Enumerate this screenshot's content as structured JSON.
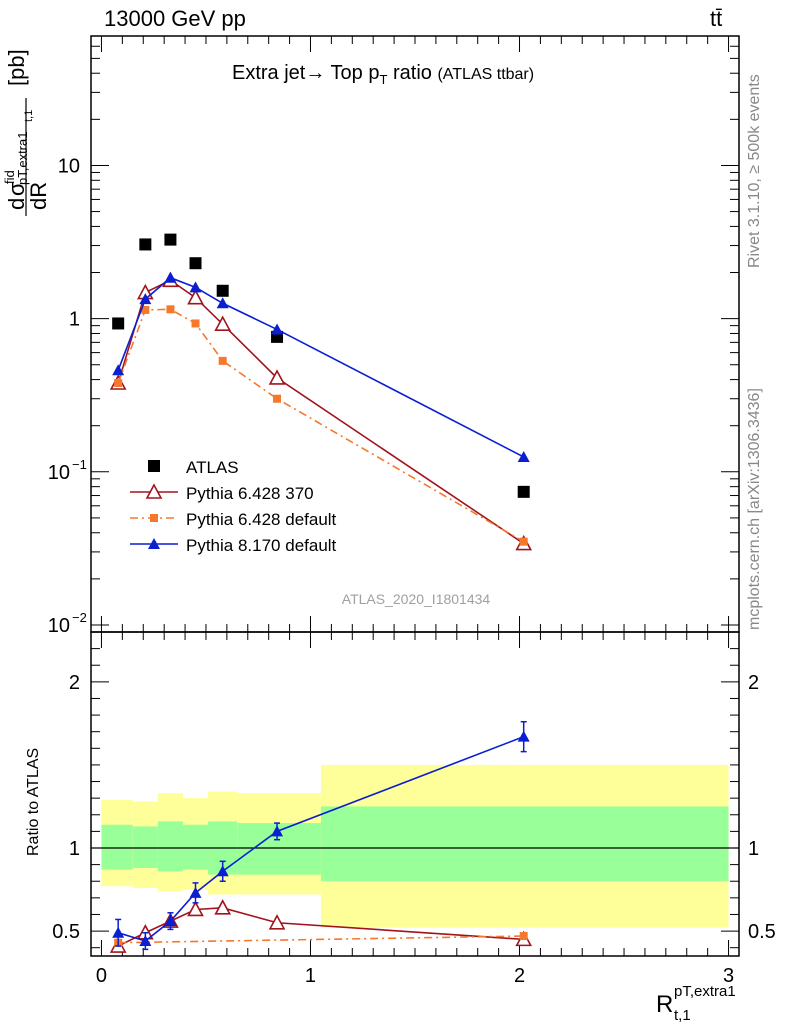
{
  "header": {
    "left": "13000 GeV pp",
    "right": "tt̄"
  },
  "side_labels": {
    "rivet": "Rivet 3.1.10, ≥ 500k events",
    "mcplots": "mcplots.cern.ch [arXiv:1306.3436]"
  },
  "plot_title": {
    "main": "Extra jet→ Top p",
    "sub": "T",
    "tail": " ratio",
    "small": "(ATLAS ttbar)"
  },
  "watermark": "ATLAS_2020_I1801434",
  "colors": {
    "atlas": "#000000",
    "py6_370": "#a0141e",
    "py6_default": "#f5782d",
    "py8_default": "#0a1ed2",
    "band_yellow": "#ffff99",
    "band_green": "#99ff99"
  },
  "chart_data": [
    {
      "type": "scatter",
      "panel": "main",
      "ylabel": "dσ/dR [pb]",
      "ylabel_parts": {
        "d": "d",
        "sigma": "σ",
        "sup": "fid",
        "sub": "pT,extra1",
        "sub2": "t,1",
        "den": "dR",
        "unit": "[pb]"
      },
      "yscale": "log",
      "ylim": [
        0.009,
        70
      ],
      "xlim": [
        -0.05,
        3.05
      ],
      "y_ticks": [
        {
          "value": 0.01,
          "label": "10",
          "exp": "−2"
        },
        {
          "value": 0.1,
          "label": "10",
          "exp": "−1"
        },
        {
          "value": 1,
          "label": "1",
          "exp": ""
        },
        {
          "value": 10,
          "label": "10",
          "exp": ""
        }
      ],
      "legend_position": "bottom-left",
      "series": [
        {
          "name": "ATLAS",
          "key": "atlas",
          "marker": "square",
          "x": [
            0.08,
            0.21,
            0.33,
            0.45,
            0.58,
            0.84,
            2.02
          ],
          "y": [
            0.93,
            3.05,
            3.28,
            2.3,
            1.52,
            0.76,
            0.074
          ]
        },
        {
          "name": "Pythia 6.428 370",
          "key": "py6_370",
          "marker": "open-triangle",
          "x": [
            0.08,
            0.21,
            0.33,
            0.45,
            0.58,
            0.84,
            2.02
          ],
          "y": [
            0.38,
            1.48,
            1.78,
            1.37,
            0.92,
            0.41,
            0.034
          ]
        },
        {
          "name": "Pythia 6.428 default",
          "key": "py6_default",
          "marker": "small-square",
          "dashed": true,
          "x": [
            0.08,
            0.21,
            0.33,
            0.45,
            0.58,
            0.84,
            2.02
          ],
          "y": [
            0.38,
            1.14,
            1.15,
            0.93,
            0.53,
            0.3,
            0.035
          ]
        },
        {
          "name": "Pythia 8.170 default",
          "key": "py8_default",
          "marker": "filled-triangle",
          "x": [
            0.08,
            0.21,
            0.33,
            0.45,
            0.58,
            0.84,
            2.02
          ],
          "y": [
            0.46,
            1.34,
            1.85,
            1.6,
            1.26,
            0.85,
            0.125
          ]
        }
      ]
    },
    {
      "type": "line",
      "panel": "ratio",
      "ylabel": "Ratio to ATLAS",
      "xlabel": "R",
      "xlabel_sup": "pT,extra1",
      "xlabel_sub": "t,1",
      "ylim": [
        0.35,
        2.3
      ],
      "xlim": [
        -0.05,
        3.05
      ],
      "x_ticks": [
        0,
        1,
        2,
        3
      ],
      "y_ticks": [
        0.5,
        1,
        2
      ],
      "bands": {
        "edges": [
          0.0,
          0.15,
          0.27,
          0.39,
          0.51,
          0.65,
          1.05,
          3.0
        ],
        "yellow_lo": [
          0.77,
          0.76,
          0.74,
          0.75,
          0.72,
          0.72,
          0.52
        ],
        "yellow_hi": [
          1.29,
          1.28,
          1.33,
          1.3,
          1.34,
          1.33,
          1.5
        ],
        "green_lo": [
          0.87,
          0.88,
          0.86,
          0.87,
          0.84,
          0.84,
          0.8
        ],
        "green_hi": [
          1.14,
          1.13,
          1.16,
          1.14,
          1.16,
          1.15,
          1.25
        ]
      },
      "series": [
        {
          "name": "Pythia 6.428 370",
          "key": "py6_370",
          "marker": "open-triangle",
          "x": [
            0.08,
            0.21,
            0.33,
            0.45,
            0.58,
            0.84,
            2.02
          ],
          "y": [
            0.41,
            0.49,
            0.56,
            0.63,
            0.64,
            0.55,
            0.45
          ]
        },
        {
          "name": "Pythia 6.428 default",
          "key": "py6_default",
          "marker": "small-square",
          "dashed": true,
          "x": [
            0.08,
            2.02
          ],
          "y": [
            0.43,
            0.47
          ]
        },
        {
          "name": "Pythia 8.170 default",
          "key": "py8_default",
          "marker": "filled-triangle",
          "x": [
            0.08,
            0.21,
            0.33,
            0.45,
            0.58,
            0.84,
            2.02
          ],
          "y": [
            0.49,
            0.44,
            0.56,
            0.73,
            0.86,
            1.1,
            1.67
          ],
          "err": [
            0.08,
            0.05,
            0.05,
            0.06,
            0.06,
            0.05,
            0.09
          ]
        }
      ]
    }
  ]
}
